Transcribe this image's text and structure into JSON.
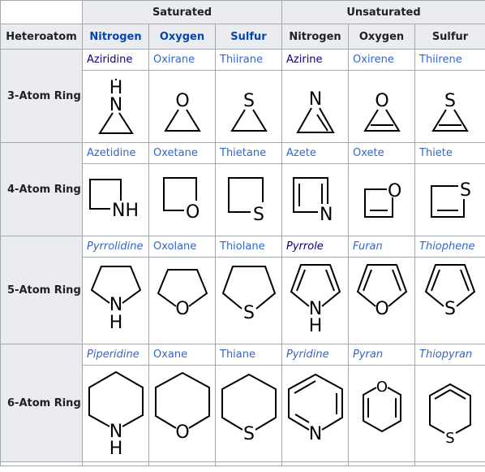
{
  "groups": {
    "saturated": "Saturated",
    "unsaturated": "Unsaturated"
  },
  "columns": {
    "heteroatom": "Heteroatom",
    "sat": [
      "Nitrogen",
      "Oxygen",
      "Sulfur"
    ],
    "unsat": [
      "Nitrogen",
      "Oxygen",
      "Sulfur"
    ]
  },
  "rows": [
    {
      "label": "3-Atom Ring",
      "names": [
        "Aziridine",
        "Oxirane",
        "Thiirane",
        "Azirine",
        "Oxirene",
        "Thiirene"
      ],
      "atoms": [
        "H",
        "N",
        "O",
        "S",
        "N",
        "O",
        "S"
      ]
    },
    {
      "label": "4-Atom Ring",
      "names": [
        "Azetidine",
        "Oxetane",
        "Thietane",
        "Azete",
        "Oxete",
        "Thiete"
      ],
      "atoms": [
        "NH",
        "O",
        "S",
        "N",
        "O",
        "S"
      ]
    },
    {
      "label": "5-Atom Ring",
      "names": [
        "Pyrrolidine",
        "Oxolane",
        "Thiolane",
        "Pyrrole",
        "Furan",
        "Thiophene"
      ],
      "atoms": [
        "N",
        "H",
        "O",
        "S",
        "N",
        "H",
        "O",
        "S"
      ]
    },
    {
      "label": "6-Atom Ring",
      "names": [
        "Piperidine",
        "Oxane",
        "Thiane",
        "Pyridine",
        "Pyran",
        "Thiopyran"
      ],
      "atoms": [
        "N",
        "H",
        "O",
        "S",
        "N",
        "O",
        "S"
      ]
    }
  ],
  "colors": {
    "link": "#3366cc",
    "visited": "#0b0080",
    "header_bg": "#eaecf0",
    "border": "#a2a9b1"
  }
}
